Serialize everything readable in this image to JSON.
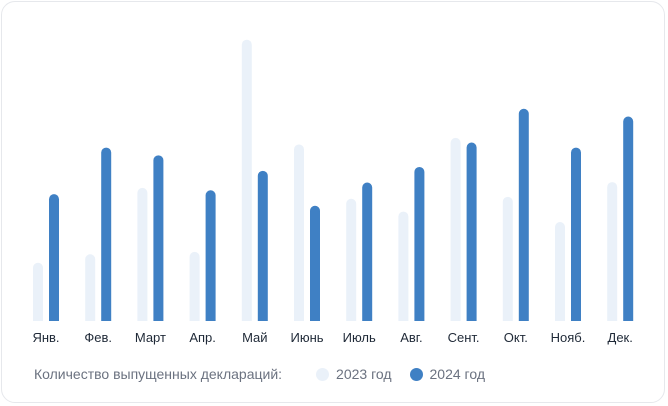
{
  "chart_data": {
    "type": "bar",
    "categories": [
      "Янв.",
      "Фев.",
      "Март",
      "Апр.",
      "Май",
      "Июнь",
      "Июль",
      "Авг.",
      "Сент.",
      "Окт.",
      "Нояб.",
      "Дек."
    ],
    "series": [
      {
        "name": "2023 год",
        "values": [
          15,
          17.2,
          34.3,
          17.8,
          72.5,
          45.5,
          31.5,
          28.2,
          47.2,
          32,
          25.5,
          35.8
        ]
      },
      {
        "name": "2024 год",
        "values": [
          32.7,
          44.7,
          42.7,
          33.7,
          38.7,
          29.7,
          35.7,
          39.7,
          46,
          54.7,
          44.7,
          52.7
        ]
      }
    ],
    "colors": [
      "#eaf1f9",
      "#3f80c4"
    ],
    "ylim": [
      0,
      75
    ],
    "grid": false,
    "legend_title": "Количество выпущенных деклараций:",
    "legend_position": "bottom-left"
  }
}
